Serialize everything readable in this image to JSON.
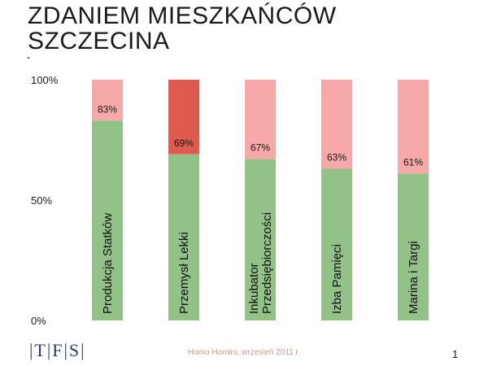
{
  "slide": {
    "title_line1": "ZDANIEM MIESZKAŃCÓW",
    "title_line2": "SZCZECINA",
    "logo_text": "|T|F|S|",
    "footer": "Homo Homini, wrzesień 2011 r.",
    "page_number": "1"
  },
  "colors": {
    "green": "#92c287",
    "pink": "#f7a8a8",
    "red_highlight": "#df5a4f"
  },
  "chart_data": {
    "type": "bar",
    "stacked": true,
    "ylim": [
      0,
      100
    ],
    "y_ticks": [
      "0%",
      "50%",
      "100%"
    ],
    "categories": [
      "Produkcja Statków",
      "Przemysł Lekki",
      "Inkubator Przedsiębiorczości",
      "Izba Pamięci",
      "Marina i Targi"
    ],
    "category_lines": [
      [
        "Produkcja Statków"
      ],
      [
        "Przemysł Lekki"
      ],
      [
        "Inkubator",
        "Przedsiębiorczości"
      ],
      [
        "Izba Pamięci"
      ],
      [
        "Marina i Targi"
      ]
    ],
    "values": [
      83,
      69,
      67,
      63,
      61
    ],
    "value_labels": [
      "83%",
      "69%",
      "67%",
      "63%",
      "61%"
    ],
    "highlight_index": 1
  }
}
